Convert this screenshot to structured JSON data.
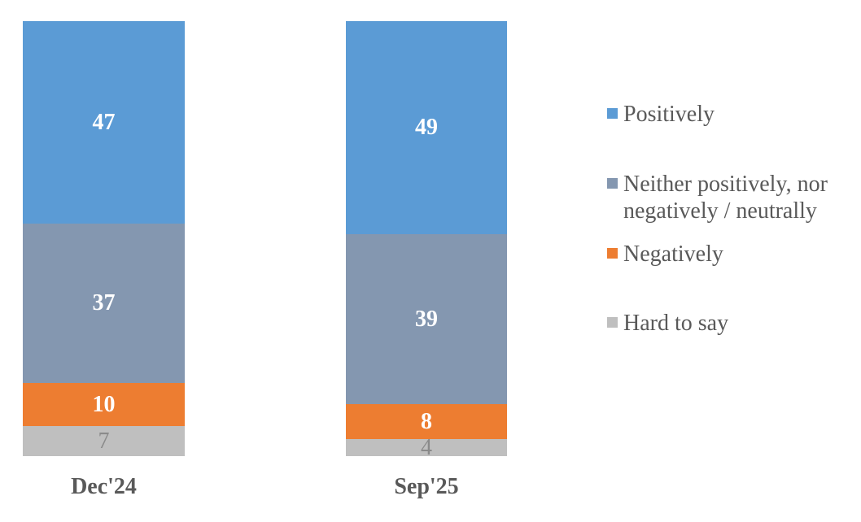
{
  "chart_data": {
    "type": "bar",
    "stacked": true,
    "orientation": "vertical",
    "categories": [
      "Dec'24",
      "Sep'25"
    ],
    "series": [
      {
        "name": "Positively",
        "values": [
          47,
          49
        ],
        "color": "#5B9BD5",
        "label_color": "#FFFFFF",
        "label_bold": true
      },
      {
        "name": "Neither positively, nor negatively / neutrally",
        "values": [
          37,
          39
        ],
        "color": "#8497B0",
        "label_color": "#FFFFFF",
        "label_bold": true
      },
      {
        "name": "Negatively",
        "values": [
          10,
          8
        ],
        "color": "#ED7D31",
        "label_color": "#FFFFFF",
        "label_bold": true
      },
      {
        "name": "Hard to say",
        "values": [
          7,
          4
        ],
        "color": "#BFBFBF",
        "label_color": "#8A8A8A",
        "label_bold": false
      }
    ],
    "data_labels": true,
    "title": "",
    "xlabel": "",
    "ylabel": "",
    "axes_visible": false,
    "grid": false,
    "legend_position": "right",
    "text_color": "#595959"
  }
}
